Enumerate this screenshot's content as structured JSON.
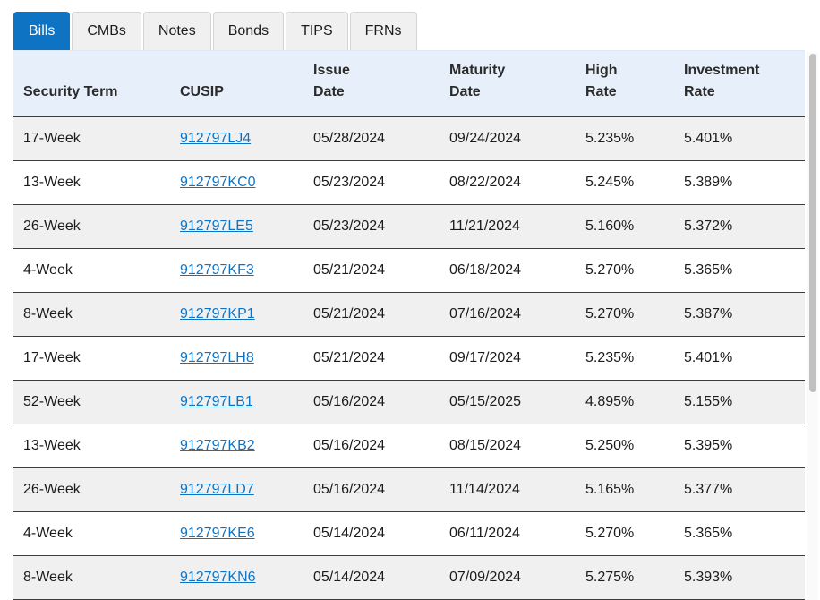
{
  "tabs": [
    {
      "label": "Bills",
      "active": true
    },
    {
      "label": "CMBs",
      "active": false
    },
    {
      "label": "Notes",
      "active": false
    },
    {
      "label": "Bonds",
      "active": false
    },
    {
      "label": "TIPS",
      "active": false
    },
    {
      "label": "FRNs",
      "active": false
    }
  ],
  "table": {
    "headers": [
      [
        "Security Term"
      ],
      [
        "CUSIP"
      ],
      [
        "Issue",
        "Date"
      ],
      [
        "Maturity",
        "Date"
      ],
      [
        "High",
        "Rate"
      ],
      [
        "Investment",
        "Rate"
      ]
    ],
    "rows": [
      {
        "term": "17-Week",
        "cusip": "912797LJ4",
        "issue_date": "05/28/2024",
        "maturity_date": "09/24/2024",
        "high_rate": "5.235%",
        "investment_rate": "5.401%"
      },
      {
        "term": "13-Week",
        "cusip": "912797KC0",
        "issue_date": "05/23/2024",
        "maturity_date": "08/22/2024",
        "high_rate": "5.245%",
        "investment_rate": "5.389%"
      },
      {
        "term": "26-Week",
        "cusip": "912797LE5",
        "issue_date": "05/23/2024",
        "maturity_date": "11/21/2024",
        "high_rate": "5.160%",
        "investment_rate": "5.372%"
      },
      {
        "term": "4-Week",
        "cusip": "912797KF3",
        "issue_date": "05/21/2024",
        "maturity_date": "06/18/2024",
        "high_rate": "5.270%",
        "investment_rate": "5.365%"
      },
      {
        "term": "8-Week",
        "cusip": "912797KP1",
        "issue_date": "05/21/2024",
        "maturity_date": "07/16/2024",
        "high_rate": "5.270%",
        "investment_rate": "5.387%"
      },
      {
        "term": "17-Week",
        "cusip": "912797LH8",
        "issue_date": "05/21/2024",
        "maturity_date": "09/17/2024",
        "high_rate": "5.235%",
        "investment_rate": "5.401%"
      },
      {
        "term": "52-Week",
        "cusip": "912797LB1",
        "issue_date": "05/16/2024",
        "maturity_date": "05/15/2025",
        "high_rate": "4.895%",
        "investment_rate": "5.155%"
      },
      {
        "term": "13-Week",
        "cusip": "912797KB2",
        "issue_date": "05/16/2024",
        "maturity_date": "08/15/2024",
        "high_rate": "5.250%",
        "investment_rate": "5.395%"
      },
      {
        "term": "26-Week",
        "cusip": "912797LD7",
        "issue_date": "05/16/2024",
        "maturity_date": "11/14/2024",
        "high_rate": "5.165%",
        "investment_rate": "5.377%"
      },
      {
        "term": "4-Week",
        "cusip": "912797KE6",
        "issue_date": "05/14/2024",
        "maturity_date": "06/11/2024",
        "high_rate": "5.270%",
        "investment_rate": "5.365%"
      },
      {
        "term": "8-Week",
        "cusip": "912797KN6",
        "issue_date": "05/14/2024",
        "maturity_date": "07/09/2024",
        "high_rate": "5.275%",
        "investment_rate": "5.393%"
      }
    ]
  },
  "colors": {
    "accent": "#0f73c4",
    "header_bg": "#e7f0fa",
    "row_stripe": "#f0f0f0"
  }
}
